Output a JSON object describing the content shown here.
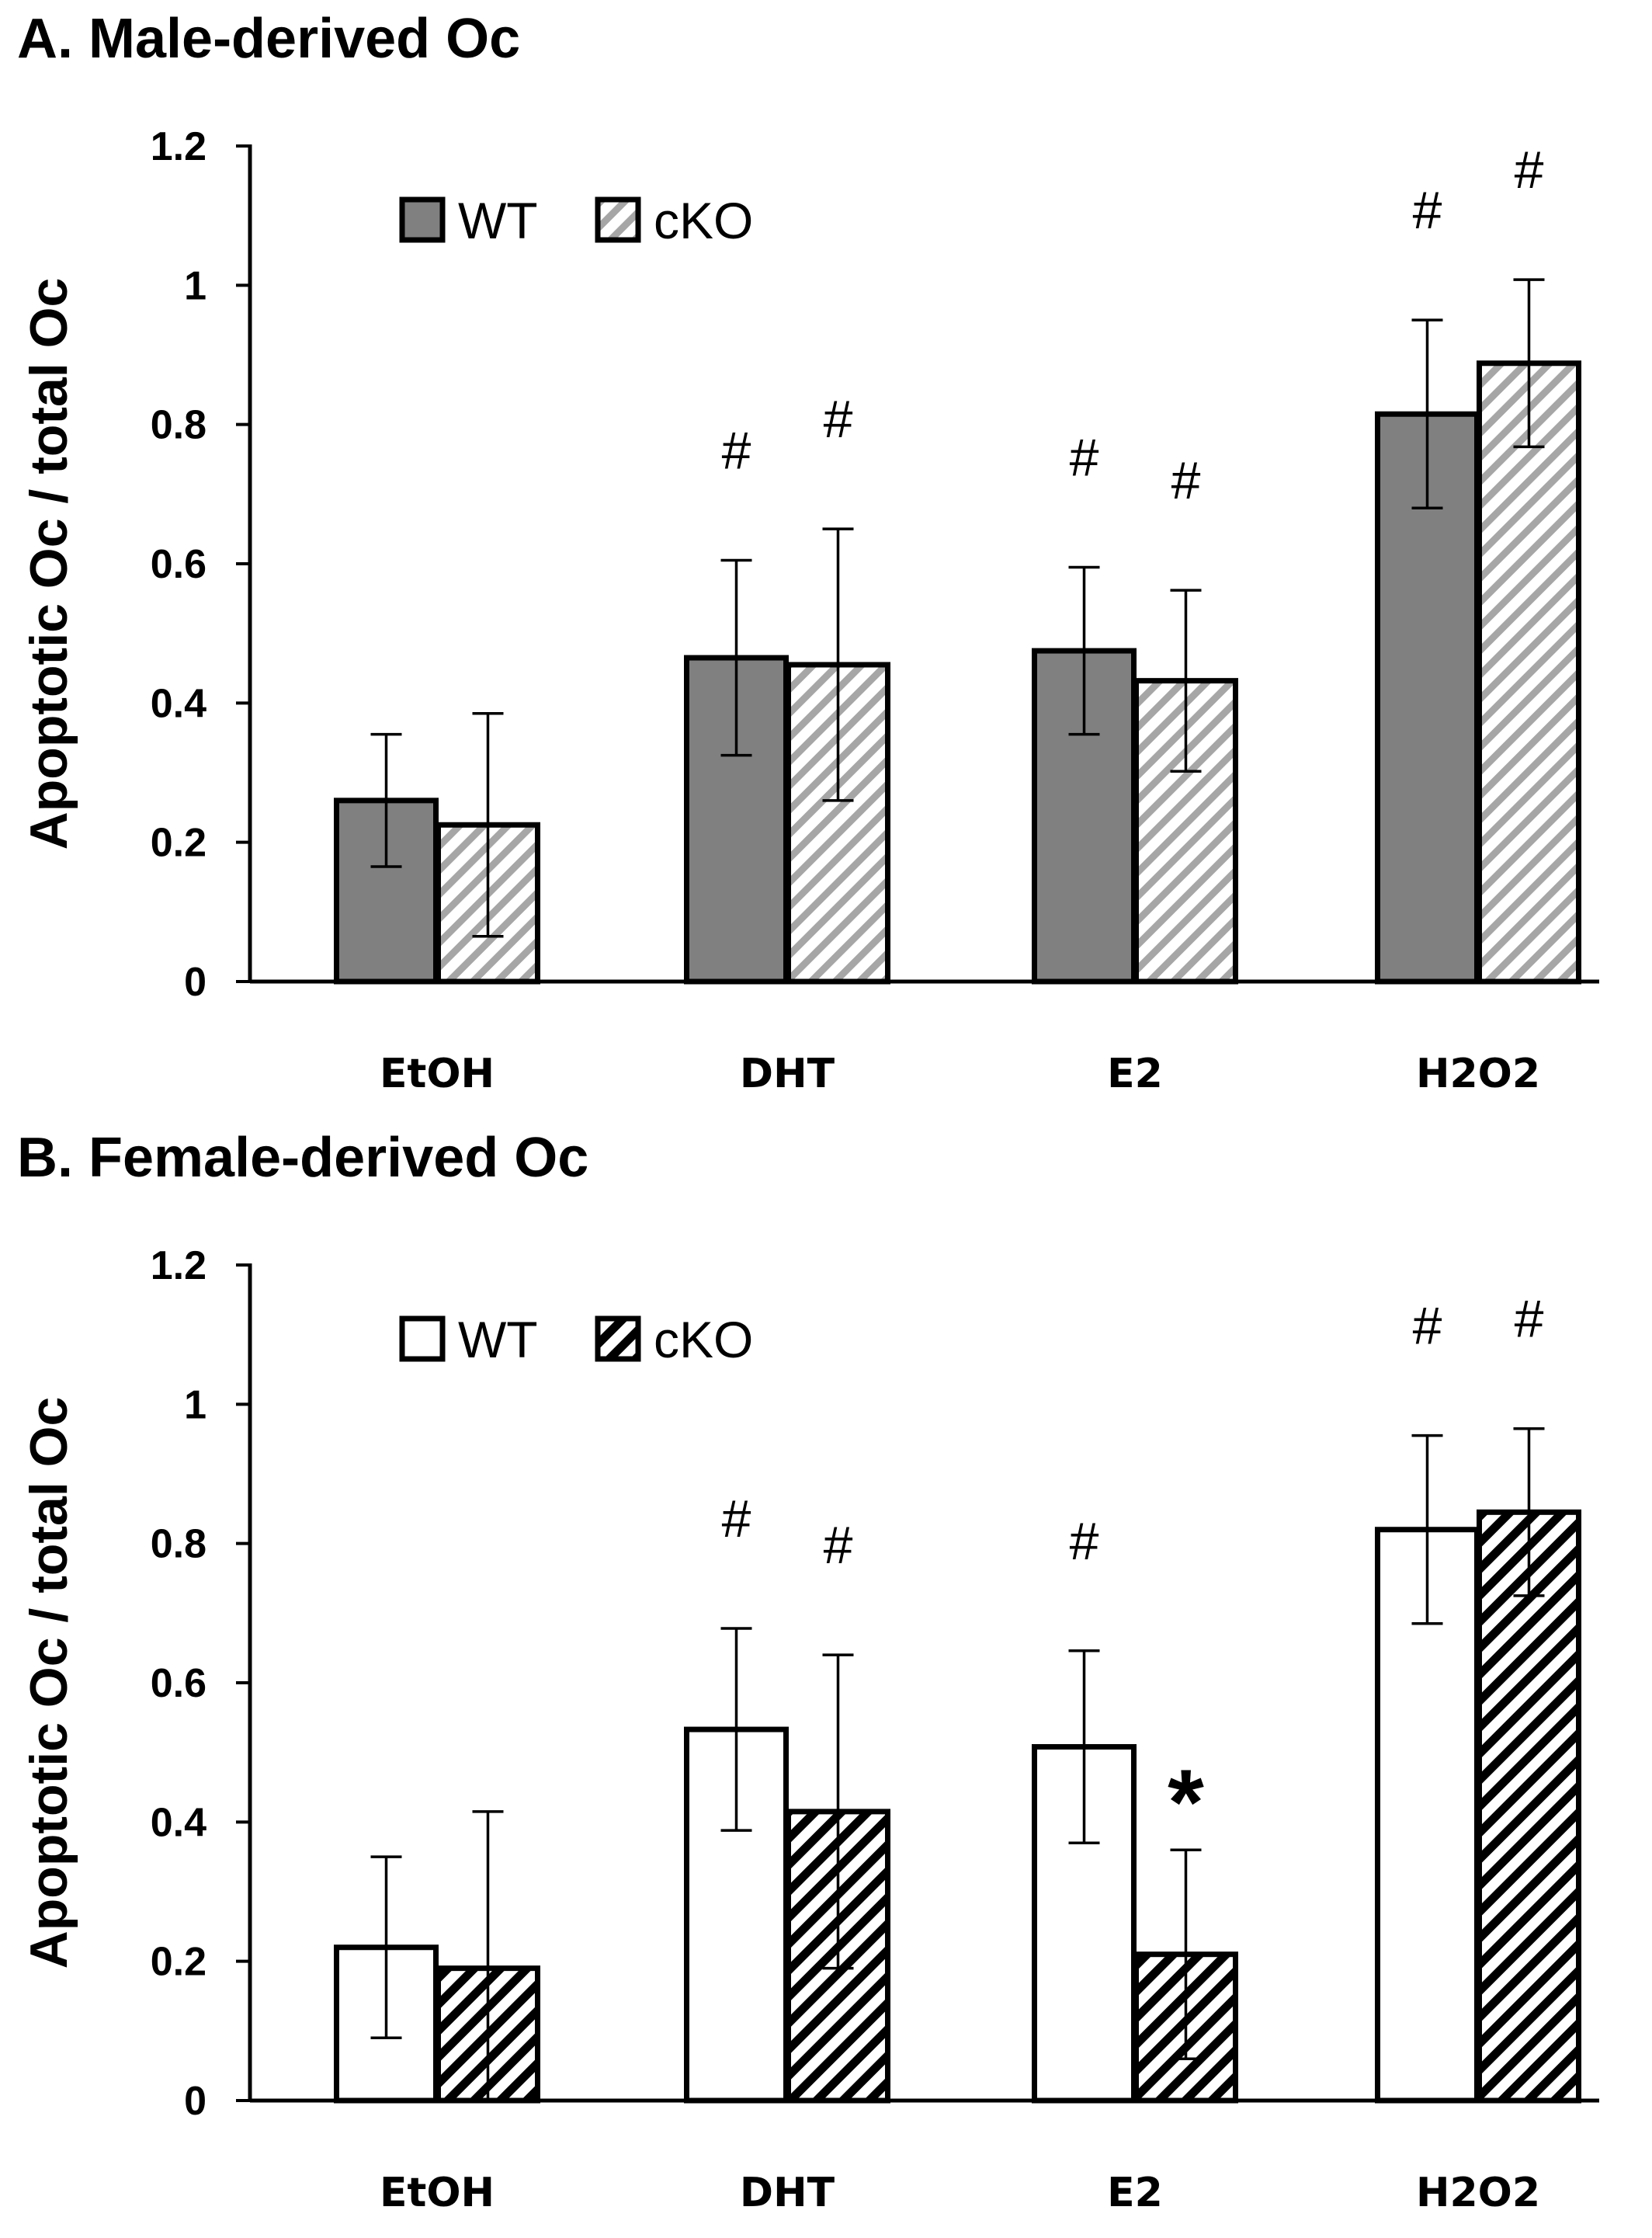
{
  "chart_data": [
    {
      "type": "bar",
      "title": "A. Male-derived Oc",
      "ylabel": "Apoptotic Oc / total Oc",
      "xlabel": "",
      "categories": [
        "EtOH",
        "DHT",
        "E2",
        "H2O2"
      ],
      "ylim": [
        0,
        1.2
      ],
      "yticks": [
        "0",
        "0.2",
        "0.4",
        "0.6",
        "0.8",
        "1",
        "1.2"
      ],
      "series": [
        {
          "name": "WT",
          "values": [
            0.26,
            0.465,
            0.475,
            0.815
          ],
          "errors": [
            0.095,
            0.14,
            0.12,
            0.135
          ],
          "fill": "#808080",
          "pattern": "solid"
        },
        {
          "name": "cKO",
          "values": [
            0.225,
            0.455,
            0.432,
            0.888
          ],
          "errors": [
            0.16,
            0.195,
            0.13,
            0.12
          ],
          "fill": "#ffffff",
          "pattern": "hatch-gray"
        }
      ],
      "annotations": [
        [
          "",
          "",
          ""
        ],
        [
          "#",
          "#"
        ],
        [
          "#",
          "#"
        ],
        [
          "#",
          "#"
        ]
      ],
      "legend": "top-left",
      "grid": false
    },
    {
      "type": "bar",
      "title": "B. Female-derived Oc",
      "ylabel": "Apoptotic Oc / total Oc",
      "xlabel": "",
      "categories": [
        "EtOH",
        "DHT",
        "E2",
        "H2O2"
      ],
      "ylim": [
        0,
        1.2
      ],
      "yticks": [
        "0",
        "0.2",
        "0.4",
        "0.6",
        "0.8",
        "1",
        "1.2"
      ],
      "series": [
        {
          "name": "WT",
          "values": [
            0.22,
            0.533,
            0.508,
            0.82
          ],
          "errors": [
            0.13,
            0.145,
            0.138,
            0.135
          ],
          "fill": "#ffffff",
          "pattern": "solid"
        },
        {
          "name": "cKO",
          "values": [
            0.19,
            0.415,
            0.21,
            0.845
          ],
          "errors": [
            0.225,
            0.225,
            0.15,
            0.12
          ],
          "fill": "#ffffff",
          "pattern": "hatch-black"
        }
      ],
      "annotations": [
        [
          "",
          ""
        ],
        [
          "#",
          "#"
        ],
        [
          "#",
          "*"
        ],
        [
          "#",
          "#"
        ]
      ],
      "legend": "top-left",
      "grid": false
    }
  ]
}
